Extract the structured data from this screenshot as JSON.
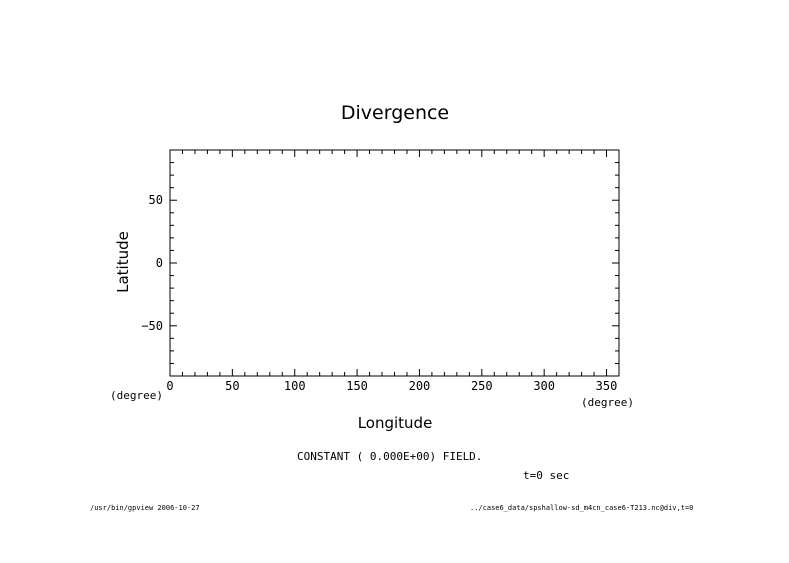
{
  "chart_data": {
    "type": "heatmap",
    "title": "Divergence",
    "xlabel": "Longitude",
    "ylabel": "Latitude",
    "x_unit": "(degree)",
    "y_unit": "(degree)",
    "xlim": [
      0,
      360
    ],
    "ylim": [
      -90,
      90
    ],
    "x_ticks": [
      0,
      50,
      100,
      150,
      200,
      250,
      300,
      350
    ],
    "y_ticks": [
      -50,
      0,
      50
    ],
    "x_minor_step": 10,
    "y_minor_step": 10,
    "values": [],
    "field_note": "CONSTANT ( 0.000E+00) FIELD.",
    "time_label": "t=0 sec"
  },
  "footer": {
    "left": "/usr/bin/gpview  2006-10-27",
    "right": "../case6_data/spshallow-sd_m4cn_case6-T213.nc@div,t=0"
  }
}
